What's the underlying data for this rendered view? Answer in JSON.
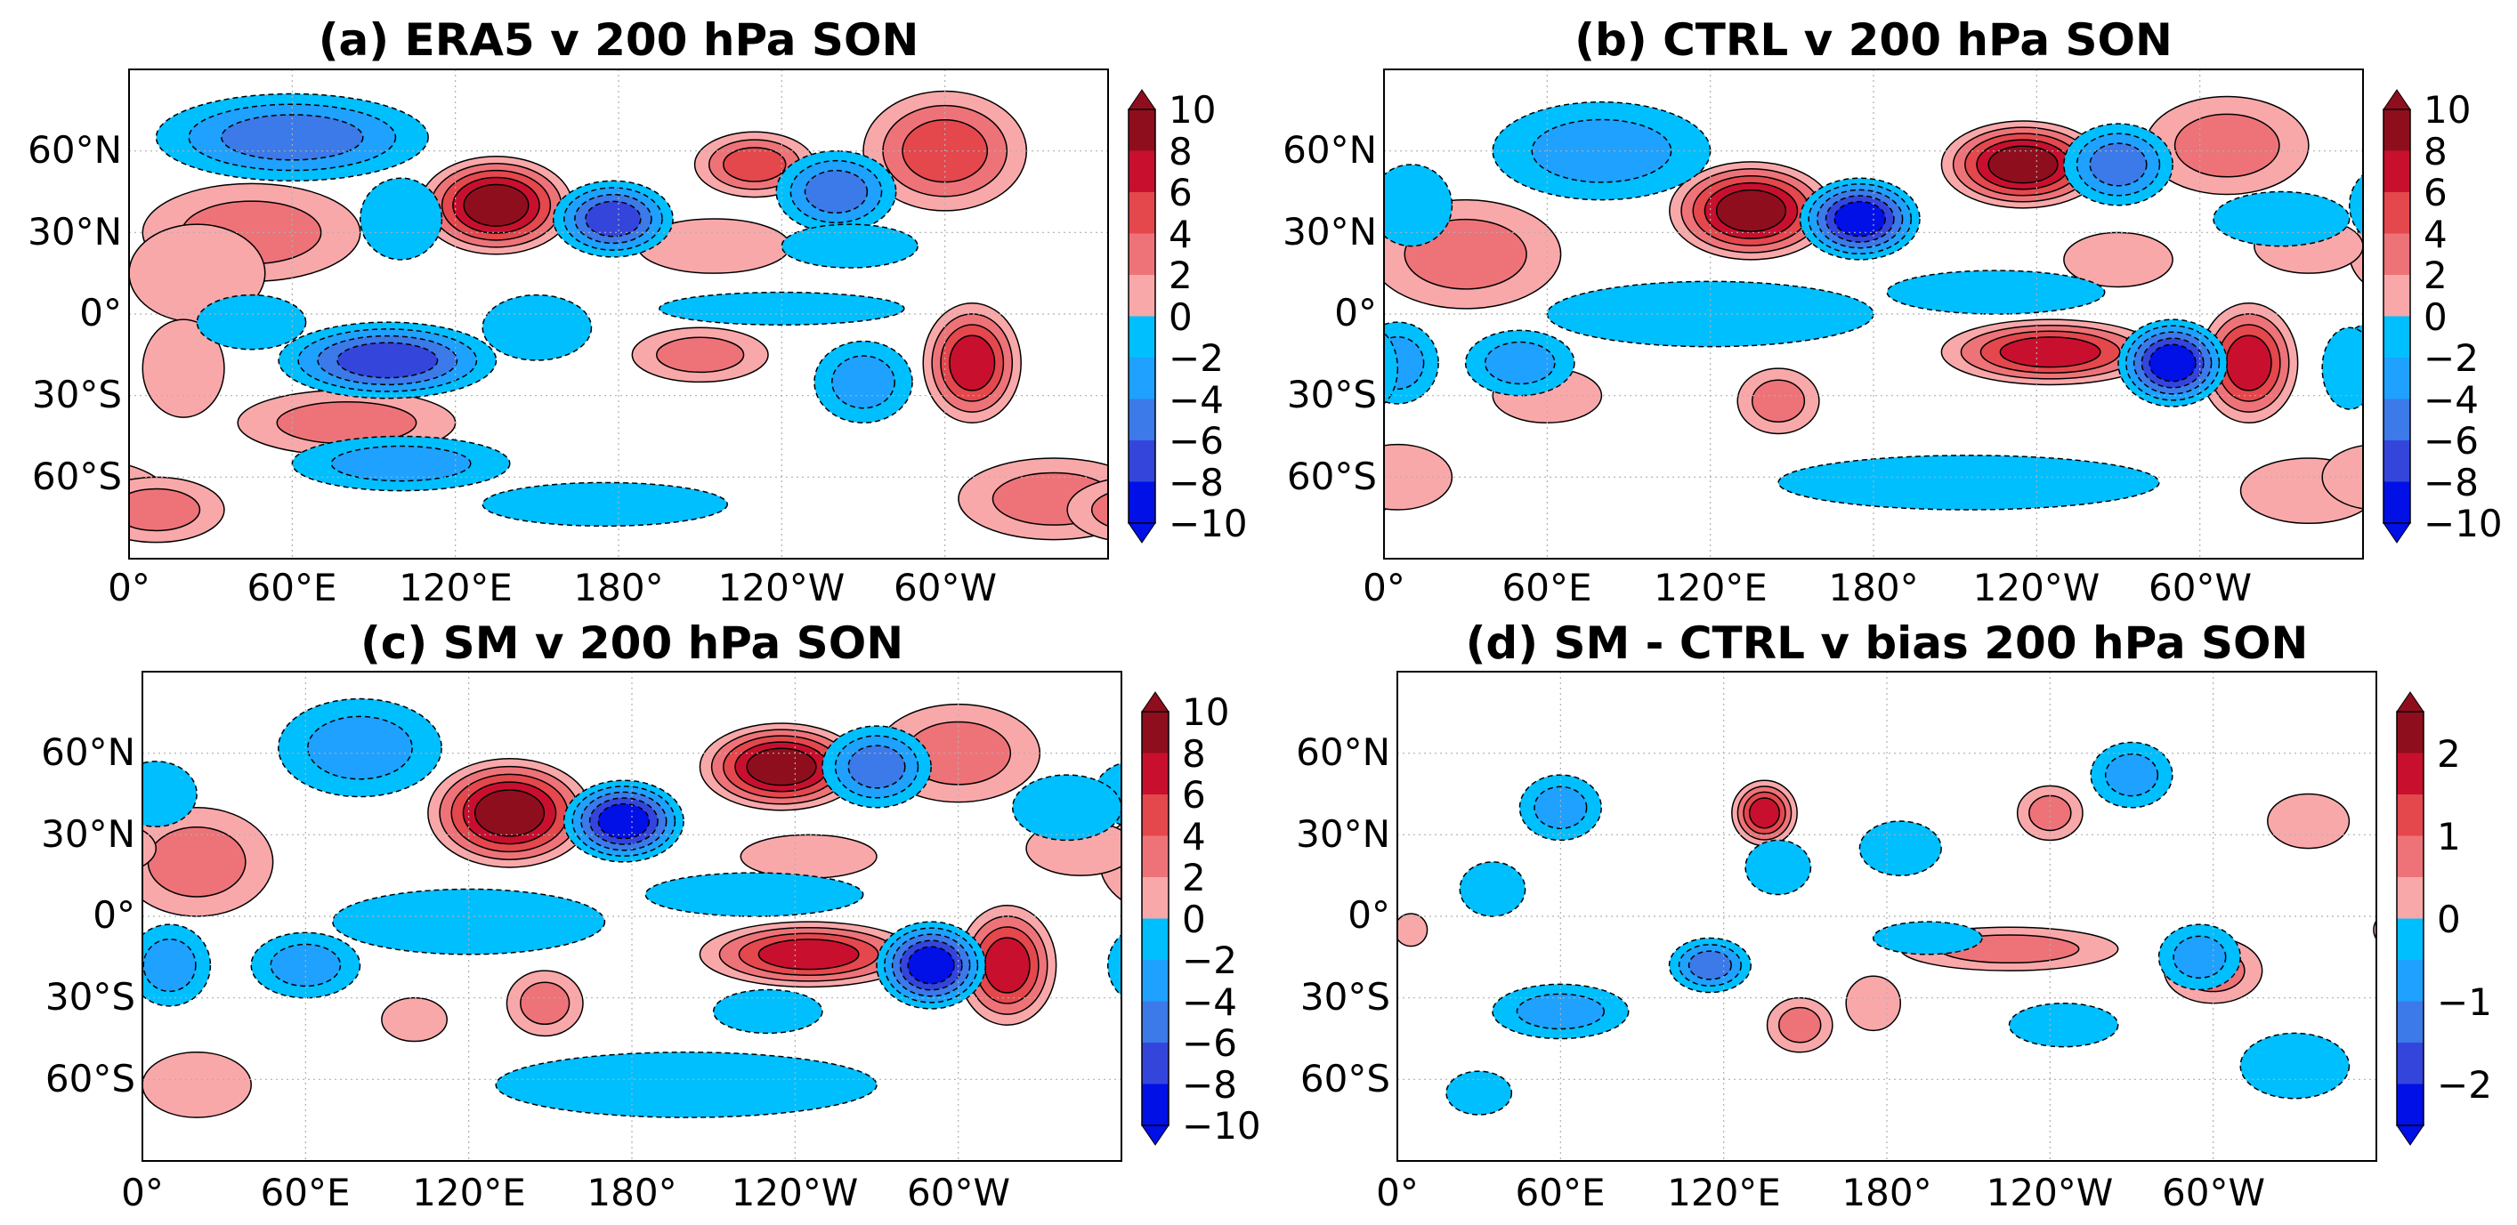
{
  "chart_data": [
    {
      "type": "heatmap",
      "title": "(a) ERA5 v 200 hPa SON",
      "xlabel": "",
      "ylabel": "",
      "x_ticks": [
        "0°",
        "60°E",
        "120°E",
        "180°",
        "120°W",
        "60°W"
      ],
      "y_ticks": [
        "60°N",
        "30°N",
        "0°",
        "30°S",
        "60°S"
      ],
      "colorbar": {
        "levels": [
          -10,
          -8,
          -6,
          -4,
          -2,
          0,
          2,
          4,
          6,
          8,
          10
        ],
        "labels": [
          "10",
          "8",
          "6",
          "4",
          "2",
          "0",
          "−2",
          "−4",
          "−6",
          "−8",
          "−10"
        ],
        "extend": "both"
      },
      "anomalies": [
        {
          "lon": 135,
          "lat": 40,
          "value": 10,
          "rx": 28,
          "ry": 18
        },
        {
          "lon": 45,
          "lat": 30,
          "value": 5,
          "rx": 40,
          "ry": 18
        },
        {
          "lon": 25,
          "lat": 15,
          "value": 3,
          "rx": 25,
          "ry": 18
        },
        {
          "lon": 230,
          "lat": 55,
          "value": 6,
          "rx": 22,
          "ry": 12
        },
        {
          "lon": 300,
          "lat": 60,
          "value": 7,
          "rx": 30,
          "ry": 22
        },
        {
          "lon": 215,
          "lat": 25,
          "value": 2.5,
          "rx": 28,
          "ry": 10
        },
        {
          "lon": 310,
          "lat": -18,
          "value": 9,
          "rx": 18,
          "ry": 22
        },
        {
          "lon": 210,
          "lat": -15,
          "value": 5,
          "rx": 25,
          "ry": 10
        },
        {
          "lon": 80,
          "lat": -40,
          "value": 5,
          "rx": 40,
          "ry": 12
        },
        {
          "lon": 20,
          "lat": -20,
          "value": 3,
          "rx": 15,
          "ry": 18
        },
        {
          "lon": 340,
          "lat": -68,
          "value": 5,
          "rx": 35,
          "ry": 15
        },
        {
          "lon": 10,
          "lat": -72,
          "value": 4,
          "rx": 25,
          "ry": 12
        },
        {
          "lon": 60,
          "lat": 65,
          "value": -7,
          "rx": 50,
          "ry": 16
        },
        {
          "lon": 178,
          "lat": 35,
          "value": -9,
          "rx": 22,
          "ry": 14
        },
        {
          "lon": 95,
          "lat": -17,
          "value": -9,
          "rx": 40,
          "ry": 14
        },
        {
          "lon": 260,
          "lat": 45,
          "value": -7,
          "rx": 22,
          "ry": 15
        },
        {
          "lon": 100,
          "lat": 35,
          "value": -3,
          "rx": 15,
          "ry": 15
        },
        {
          "lon": 240,
          "lat": 2,
          "value": -3,
          "rx": 45,
          "ry": 6
        },
        {
          "lon": 270,
          "lat": -25,
          "value": -4,
          "rx": 18,
          "ry": 15
        },
        {
          "lon": 45,
          "lat": -3,
          "value": -3,
          "rx": 20,
          "ry": 10
        },
        {
          "lon": 100,
          "lat": -55,
          "value": -4,
          "rx": 40,
          "ry": 10
        },
        {
          "lon": 175,
          "lat": -70,
          "value": -3,
          "rx": 45,
          "ry": 8
        },
        {
          "lon": 150,
          "lat": -5,
          "value": -3,
          "rx": 20,
          "ry": 12
        },
        {
          "lon": 265,
          "lat": 25,
          "value": -3,
          "rx": 25,
          "ry": 8
        }
      ]
    },
    {
      "type": "heatmap",
      "title": "(b) CTRL v 200 hPa SON",
      "xlabel": "",
      "ylabel": "",
      "x_ticks": [
        "0°",
        "60°E",
        "120°E",
        "180°",
        "120°W",
        "60°W"
      ],
      "y_ticks": [
        "60°N",
        "30°N",
        "0°",
        "30°S",
        "60°S"
      ],
      "colorbar": {
        "levels": [
          -10,
          -8,
          -6,
          -4,
          -2,
          0,
          2,
          4,
          6,
          8,
          10
        ],
        "labels": [
          "10",
          "8",
          "6",
          "4",
          "2",
          "0",
          "−2",
          "−4",
          "−6",
          "−8",
          "−10"
        ],
        "extend": "both"
      },
      "anomalies": [
        {
          "lon": 135,
          "lat": 38,
          "value": 11,
          "rx": 30,
          "ry": 18
        },
        {
          "lon": 235,
          "lat": 55,
          "value": 10,
          "rx": 30,
          "ry": 16
        },
        {
          "lon": 30,
          "lat": 22,
          "value": 5,
          "rx": 35,
          "ry": 20
        },
        {
          "lon": 310,
          "lat": 62,
          "value": 5,
          "rx": 30,
          "ry": 18
        },
        {
          "lon": 245,
          "lat": -14,
          "value": 8,
          "rx": 40,
          "ry": 12
        },
        {
          "lon": 318,
          "lat": -18,
          "value": 9,
          "rx": 18,
          "ry": 22
        },
        {
          "lon": 145,
          "lat": -32,
          "value": 5,
          "rx": 15,
          "ry": 12
        },
        {
          "lon": 340,
          "lat": 25,
          "value": 3,
          "rx": 20,
          "ry": 10
        },
        {
          "lon": 270,
          "lat": 20,
          "value": 3,
          "rx": 20,
          "ry": 10
        },
        {
          "lon": 60,
          "lat": -30,
          "value": 3,
          "rx": 20,
          "ry": 10
        },
        {
          "lon": 340,
          "lat": -65,
          "value": 3,
          "rx": 25,
          "ry": 12
        },
        {
          "lon": 5,
          "lat": -60,
          "value": 3,
          "rx": 20,
          "ry": 12
        },
        {
          "lon": 175,
          "lat": 35,
          "value": -11,
          "rx": 22,
          "ry": 15
        },
        {
          "lon": 80,
          "lat": 60,
          "value": -5,
          "rx": 40,
          "ry": 18
        },
        {
          "lon": 270,
          "lat": 55,
          "value": -6,
          "rx": 20,
          "ry": 15
        },
        {
          "lon": 290,
          "lat": -18,
          "value": -10,
          "rx": 20,
          "ry": 16
        },
        {
          "lon": 120,
          "lat": 0,
          "value": -3,
          "rx": 60,
          "ry": 12
        },
        {
          "lon": 225,
          "lat": 8,
          "value": -3,
          "rx": 40,
          "ry": 8
        },
        {
          "lon": 330,
          "lat": 35,
          "value": -3,
          "rx": 25,
          "ry": 10
        },
        {
          "lon": 50,
          "lat": -18,
          "value": -5,
          "rx": 20,
          "ry": 12
        },
        {
          "lon": 5,
          "lat": -18,
          "value": -4,
          "rx": 15,
          "ry": 15
        },
        {
          "lon": 215,
          "lat": -62,
          "value": -3,
          "rx": 70,
          "ry": 10
        },
        {
          "lon": 10,
          "lat": 40,
          "value": -3,
          "rx": 15,
          "ry": 15
        },
        {
          "lon": 355,
          "lat": -20,
          "value": -3,
          "rx": 10,
          "ry": 15
        }
      ]
    },
    {
      "type": "heatmap",
      "title": "(c) SM v 200 hPa SON",
      "xlabel": "",
      "ylabel": "",
      "x_ticks": [
        "0°",
        "60°E",
        "120°E",
        "180°",
        "120°W",
        "60°W"
      ],
      "y_ticks": [
        "60°N",
        "30°N",
        "0°",
        "30°S",
        "60°S"
      ],
      "colorbar": {
        "levels": [
          -10,
          -8,
          -6,
          -4,
          -2,
          0,
          2,
          4,
          6,
          8,
          10
        ],
        "labels": [
          "10",
          "8",
          "6",
          "4",
          "2",
          "0",
          "−2",
          "−4",
          "−6",
          "−8",
          "−10"
        ],
        "extend": "both"
      },
      "anomalies": [
        {
          "lon": 135,
          "lat": 38,
          "value": 11,
          "rx": 30,
          "ry": 20
        },
        {
          "lon": 235,
          "lat": 55,
          "value": 10,
          "rx": 30,
          "ry": 16
        },
        {
          "lon": 20,
          "lat": 20,
          "value": 5,
          "rx": 28,
          "ry": 20
        },
        {
          "lon": 300,
          "lat": 60,
          "value": 4,
          "rx": 30,
          "ry": 18
        },
        {
          "lon": 345,
          "lat": 25,
          "value": 3,
          "rx": 20,
          "ry": 10
        },
        {
          "lon": 245,
          "lat": -14,
          "value": 8,
          "rx": 40,
          "ry": 12
        },
        {
          "lon": 318,
          "lat": -18,
          "value": 9,
          "rx": 18,
          "ry": 22
        },
        {
          "lon": 148,
          "lat": -32,
          "value": 5,
          "rx": 14,
          "ry": 12
        },
        {
          "lon": 245,
          "lat": 22,
          "value": 3,
          "rx": 25,
          "ry": 8
        },
        {
          "lon": 20,
          "lat": -62,
          "value": 3,
          "rx": 20,
          "ry": 12
        },
        {
          "lon": 100,
          "lat": -38,
          "value": 3,
          "rx": 12,
          "ry": 8
        },
        {
          "lon": 177,
          "lat": 35,
          "value": -11,
          "rx": 22,
          "ry": 15
        },
        {
          "lon": 80,
          "lat": 62,
          "value": -5,
          "rx": 30,
          "ry": 18
        },
        {
          "lon": 270,
          "lat": 55,
          "value": -6,
          "rx": 20,
          "ry": 15
        },
        {
          "lon": 290,
          "lat": -18,
          "value": -10,
          "rx": 20,
          "ry": 16
        },
        {
          "lon": 120,
          "lat": -2,
          "value": -3,
          "rx": 50,
          "ry": 12
        },
        {
          "lon": 225,
          "lat": 8,
          "value": -3,
          "rx": 40,
          "ry": 8
        },
        {
          "lon": 60,
          "lat": -18,
          "value": -5,
          "rx": 20,
          "ry": 12
        },
        {
          "lon": 10,
          "lat": -18,
          "value": -5,
          "rx": 15,
          "ry": 15
        },
        {
          "lon": 200,
          "lat": -62,
          "value": -3,
          "rx": 70,
          "ry": 12
        },
        {
          "lon": 5,
          "lat": 45,
          "value": -3,
          "rx": 15,
          "ry": 12
        },
        {
          "lon": 340,
          "lat": 40,
          "value": -3,
          "rx": 20,
          "ry": 12
        },
        {
          "lon": 230,
          "lat": -35,
          "value": -3,
          "rx": 20,
          "ry": 8
        }
      ]
    },
    {
      "type": "heatmap",
      "title": "(d) SM - CTRL v bias 200 hPa SON",
      "xlabel": "",
      "ylabel": "",
      "x_ticks": [
        "0°",
        "60°E",
        "120°E",
        "180°",
        "120°W",
        "60°W"
      ],
      "y_ticks": [
        "60°N",
        "30°N",
        "0°",
        "30°S",
        "60°S"
      ],
      "colorbar": {
        "levels": [
          -2.5,
          -2,
          -1.5,
          -1,
          -0.5,
          0,
          0.5,
          1,
          1.5,
          2,
          2.5
        ],
        "labels": [
          "2",
          "1",
          "0",
          "−1",
          "−2"
        ],
        "extend": "both"
      },
      "anomalies": [
        {
          "lon": 135,
          "lat": 38,
          "value": 2.2,
          "rx": 12,
          "ry": 12
        },
        {
          "lon": 240,
          "lat": 38,
          "value": 1.2,
          "rx": 12,
          "ry": 10
        },
        {
          "lon": 335,
          "lat": 35,
          "value": 0.8,
          "rx": 15,
          "ry": 10
        },
        {
          "lon": 225,
          "lat": -12,
          "value": 1.4,
          "rx": 40,
          "ry": 8
        },
        {
          "lon": 300,
          "lat": -20,
          "value": 1.0,
          "rx": 18,
          "ry": 12
        },
        {
          "lon": 148,
          "lat": -40,
          "value": 1.2,
          "rx": 12,
          "ry": 10
        },
        {
          "lon": 175,
          "lat": -32,
          "value": 0.7,
          "rx": 10,
          "ry": 10
        },
        {
          "lon": 5,
          "lat": -5,
          "value": 0.7,
          "rx": 6,
          "ry": 6
        },
        {
          "lon": 60,
          "lat": 40,
          "value": -1.1,
          "rx": 15,
          "ry": 12
        },
        {
          "lon": 270,
          "lat": 52,
          "value": -1.1,
          "rx": 15,
          "ry": 12
        },
        {
          "lon": 295,
          "lat": -15,
          "value": -1.3,
          "rx": 15,
          "ry": 12
        },
        {
          "lon": 115,
          "lat": -18,
          "value": -1.5,
          "rx": 15,
          "ry": 10
        },
        {
          "lon": 60,
          "lat": -35,
          "value": -1.1,
          "rx": 25,
          "ry": 10
        },
        {
          "lon": 140,
          "lat": 18,
          "value": -0.8,
          "rx": 12,
          "ry": 10
        },
        {
          "lon": 185,
          "lat": 25,
          "value": -0.9,
          "rx": 15,
          "ry": 10
        },
        {
          "lon": 35,
          "lat": 10,
          "value": -0.9,
          "rx": 12,
          "ry": 10
        },
        {
          "lon": 245,
          "lat": -40,
          "value": -0.8,
          "rx": 20,
          "ry": 8
        },
        {
          "lon": 330,
          "lat": -55,
          "value": -0.8,
          "rx": 20,
          "ry": 12
        },
        {
          "lon": 30,
          "lat": -65,
          "value": -0.8,
          "rx": 12,
          "ry": 8
        },
        {
          "lon": 195,
          "lat": -8,
          "value": -0.8,
          "rx": 20,
          "ry": 6
        }
      ]
    }
  ],
  "colors": {
    "pos": [
      "#f9a8aa",
      "#ee7378",
      "#e4474c",
      "#c8102e",
      "#8f0e1e"
    ],
    "neg": [
      "#00bfff",
      "#1fa1ff",
      "#3b7ae8",
      "#3445dc",
      "#0010e6"
    ],
    "zero": "#ffffff",
    "grid": "#b0b0b0"
  }
}
